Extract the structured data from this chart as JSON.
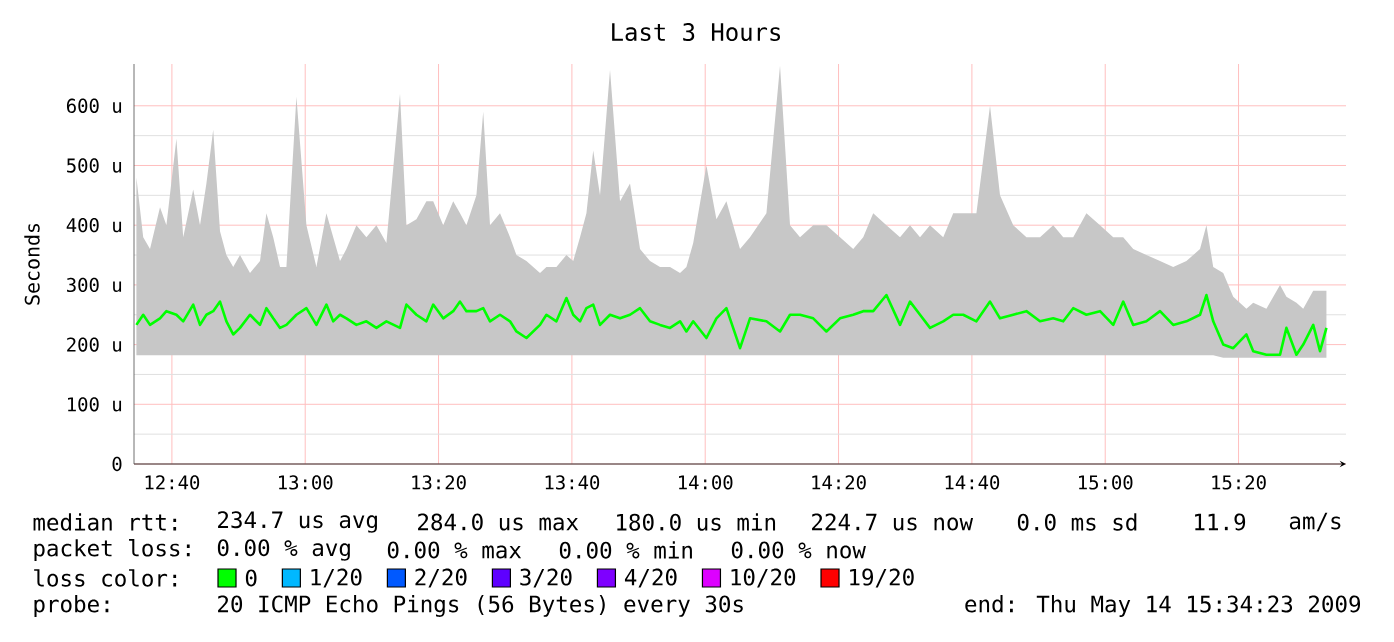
{
  "chart_data": {
    "type": "line",
    "title": "Last 3 Hours",
    "ylabel": "Seconds",
    "xlim": [
      12.572,
      15.602
    ],
    "ylim": [
      0,
      670
    ],
    "xticks": [
      {
        "value": 12.6667,
        "label": "12:40"
      },
      {
        "value": 13.0,
        "label": "13:00"
      },
      {
        "value": 13.3333,
        "label": "13:20"
      },
      {
        "value": 13.6667,
        "label": "13:40"
      },
      {
        "value": 14.0,
        "label": "14:00"
      },
      {
        "value": 14.3333,
        "label": "14:20"
      },
      {
        "value": 14.6667,
        "label": "14:40"
      },
      {
        "value": 15.0,
        "label": "15:00"
      },
      {
        "value": 15.3333,
        "label": "15:20"
      }
    ],
    "yticks": [
      0,
      {
        "value": 100,
        "label": "100 u"
      },
      {
        "value": 200,
        "label": "200 u"
      },
      {
        "value": 300,
        "label": "300 u"
      },
      {
        "value": 400,
        "label": "400 u"
      },
      {
        "value": 500,
        "label": "500 u"
      },
      {
        "value": 600,
        "label": "600 u"
      }
    ],
    "grid": true,
    "legend": "bottom",
    "legend_title": "loss color:",
    "marker": "none",
    "line_style": "solid",
    "series": [
      {
        "name": "0",
        "color": "#00ff00",
        "x": [
          12.578,
          12.595,
          12.612,
          12.637,
          12.653,
          12.678,
          12.695,
          12.72,
          12.737,
          12.753,
          12.77,
          12.787,
          12.803,
          12.82,
          12.837,
          12.862,
          12.887,
          12.903,
          12.92,
          12.937,
          12.953,
          12.978,
          13.003,
          13.028,
          13.053,
          13.07,
          13.087,
          13.103,
          13.128,
          13.153,
          13.178,
          13.203,
          13.237,
          13.253,
          13.278,
          13.303,
          13.32,
          13.345,
          13.37,
          13.387,
          13.403,
          13.428,
          13.445,
          13.462,
          13.487,
          13.512,
          13.528,
          13.553,
          13.587,
          13.603,
          13.628,
          13.653,
          13.67,
          13.687,
          13.703,
          13.72,
          13.737,
          13.762,
          13.787,
          13.812,
          13.837,
          13.862,
          13.887,
          13.912,
          13.937,
          13.953,
          13.97,
          14.003,
          14.028,
          14.053,
          14.087,
          14.112,
          14.153,
          14.187,
          14.212,
          14.237,
          14.27,
          14.303,
          14.337,
          14.37,
          14.395,
          14.42,
          14.453,
          14.487,
          14.512,
          14.537,
          14.562,
          14.595,
          14.62,
          14.645,
          14.678,
          14.712,
          14.737,
          14.77,
          14.803,
          14.837,
          14.87,
          14.895,
          14.92,
          14.953,
          14.987,
          15.02,
          15.045,
          15.07,
          15.103,
          15.137,
          15.17,
          15.203,
          15.237,
          15.253,
          15.27,
          15.295,
          15.32,
          15.353,
          15.37,
          15.403,
          15.437,
          15.453,
          15.478,
          15.495,
          15.52,
          15.537,
          15.553
        ],
        "values": [
          233,
          250,
          233,
          244,
          256,
          250,
          239,
          267,
          233,
          250,
          256,
          272,
          239,
          217,
          228,
          250,
          233,
          261,
          244,
          228,
          233,
          250,
          261,
          233,
          267,
          239,
          250,
          244,
          233,
          239,
          228,
          239,
          228,
          267,
          250,
          239,
          267,
          244,
          256,
          272,
          256,
          256,
          261,
          239,
          250,
          239,
          222,
          211,
          233,
          250,
          239,
          278,
          250,
          239,
          261,
          267,
          233,
          250,
          244,
          250,
          261,
          239,
          233,
          228,
          239,
          222,
          239,
          211,
          244,
          261,
          194,
          244,
          239,
          222,
          250,
          250,
          244,
          222,
          244,
          250,
          256,
          256,
          283,
          233,
          272,
          250,
          228,
          239,
          250,
          250,
          239,
          272,
          244,
          250,
          256,
          239,
          244,
          239,
          261,
          250,
          256,
          233,
          272,
          233,
          239,
          256,
          233,
          239,
          250,
          283,
          239,
          200,
          194,
          217,
          189,
          183,
          183,
          228,
          183,
          200,
          233,
          189,
          228
        ],
        "lower": [
          182,
          182,
          182,
          182,
          182,
          182,
          182,
          182,
          182,
          182,
          182,
          182,
          182,
          182,
          182,
          182,
          182,
          182,
          182,
          182,
          182,
          182,
          182,
          182,
          182,
          182,
          182,
          182,
          182,
          182,
          182,
          182,
          182,
          182,
          182,
          182,
          182,
          182,
          182,
          182,
          182,
          182,
          182,
          182,
          182,
          182,
          182,
          182,
          182,
          182,
          182,
          182,
          182,
          182,
          182,
          182,
          182,
          182,
          182,
          182,
          182,
          182,
          182,
          182,
          182,
          182,
          182,
          182,
          182,
          182,
          182,
          182,
          182,
          182,
          182,
          182,
          182,
          182,
          182,
          182,
          182,
          182,
          182,
          182,
          182,
          182,
          182,
          182,
          182,
          182,
          182,
          182,
          182,
          182,
          182,
          182,
          182,
          182,
          182,
          182,
          182,
          182,
          182,
          182,
          182,
          182,
          182,
          182,
          182,
          182,
          182,
          178,
          178,
          178,
          178,
          178,
          178,
          178,
          178,
          178,
          178,
          178,
          178
        ],
        "upper": [
          480,
          380,
          360,
          430,
          400,
          545,
          380,
          460,
          400,
          470,
          560,
          390,
          350,
          330,
          350,
          320,
          340,
          420,
          380,
          330,
          330,
          615,
          400,
          330,
          420,
          380,
          340,
          360,
          400,
          380,
          400,
          370,
          620,
          400,
          410,
          440,
          440,
          400,
          440,
          420,
          400,
          450,
          590,
          400,
          420,
          380,
          350,
          340,
          320,
          330,
          330,
          350,
          340,
          380,
          420,
          525,
          450,
          660,
          440,
          470,
          360,
          340,
          330,
          330,
          320,
          330,
          370,
          500,
          410,
          440,
          360,
          380,
          420,
          667,
          400,
          380,
          400,
          400,
          380,
          360,
          380,
          420,
          400,
          380,
          400,
          380,
          400,
          380,
          420,
          420,
          420,
          600,
          450,
          400,
          380,
          380,
          400,
          380,
          380,
          420,
          400,
          380,
          380,
          360,
          350,
          340,
          330,
          340,
          360,
          400,
          330,
          320,
          280,
          260,
          270,
          260,
          300,
          280,
          270,
          260,
          290,
          290,
          290
        ]
      },
      {
        "name": "1/20",
        "color": "#00b8ff"
      },
      {
        "name": "2/20",
        "color": "#0059ff"
      },
      {
        "name": "3/20",
        "color": "#5e00ff"
      },
      {
        "name": "4/20",
        "color": "#7e00ff"
      },
      {
        "name": "10/20",
        "color": "#dd00ff"
      },
      {
        "name": "19/20",
        "color": "#ff0000"
      }
    ],
    "annotations": [
      "median rtt:",
      "234.7 us avg",
      "284.0 us max",
      "180.0 us min",
      "224.7 us now",
      "0.0 ms sd",
      "11.9",
      "am/s",
      "packet loss:",
      "0.00 % avg",
      "0.00 % max",
      "0.00 % min",
      "0.00 % now",
      "probe:",
      "20 ICMP Echo Pings (56 Bytes) every 30s",
      "end: Thu May 14 15:34:23 2009"
    ]
  }
}
